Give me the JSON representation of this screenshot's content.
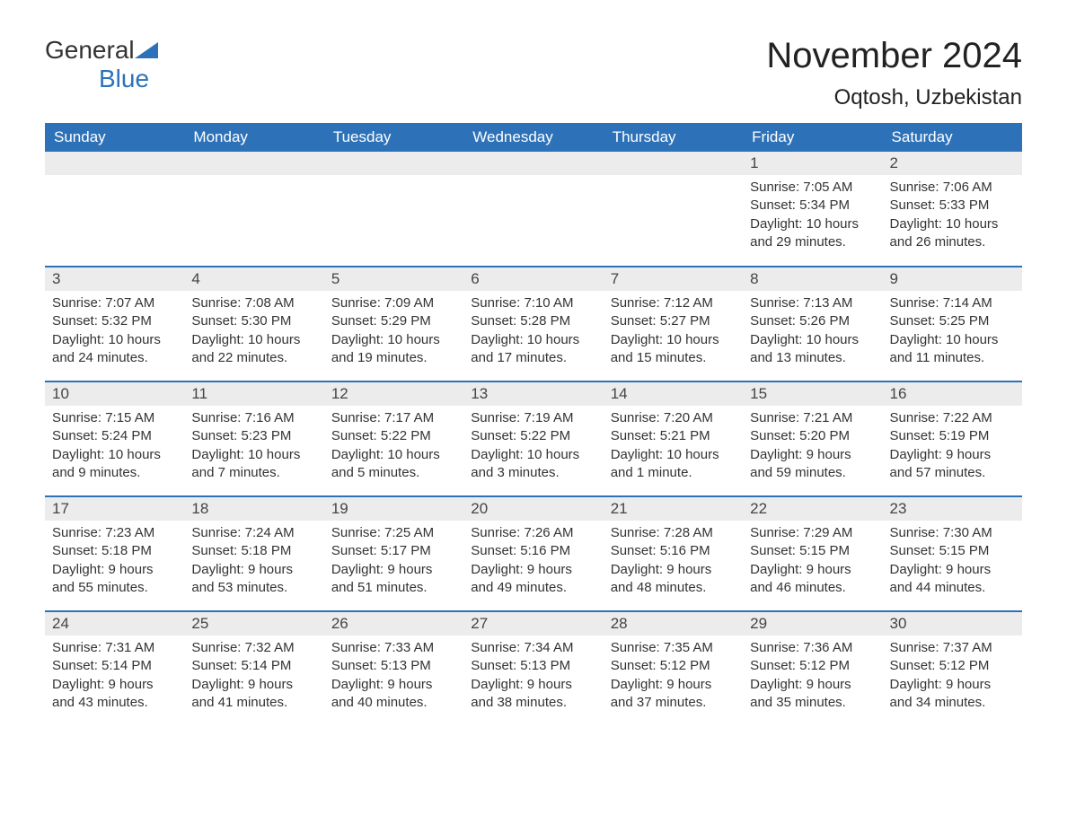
{
  "brand": {
    "part1": "General",
    "part2": "Blue"
  },
  "title": "November 2024",
  "location": "Oqtosh, Uzbekistan",
  "colors": {
    "header_bg": "#2d72b8",
    "header_text": "#ffffff",
    "daynum_bg": "#ececec",
    "row_border": "#2d72b8",
    "body_text": "#333333",
    "page_bg": "#ffffff"
  },
  "typography": {
    "title_fontsize": 40,
    "location_fontsize": 24,
    "header_fontsize": 17,
    "daynum_fontsize": 17,
    "cell_fontsize": 15
  },
  "layout": {
    "columns": 7,
    "rows": 5,
    "first_weekday_index": 5
  },
  "weekdays": [
    "Sunday",
    "Monday",
    "Tuesday",
    "Wednesday",
    "Thursday",
    "Friday",
    "Saturday"
  ],
  "days": [
    {
      "n": 1,
      "sunrise": "7:05 AM",
      "sunset": "5:34 PM",
      "daylight": "10 hours and 29 minutes."
    },
    {
      "n": 2,
      "sunrise": "7:06 AM",
      "sunset": "5:33 PM",
      "daylight": "10 hours and 26 minutes."
    },
    {
      "n": 3,
      "sunrise": "7:07 AM",
      "sunset": "5:32 PM",
      "daylight": "10 hours and 24 minutes."
    },
    {
      "n": 4,
      "sunrise": "7:08 AM",
      "sunset": "5:30 PM",
      "daylight": "10 hours and 22 minutes."
    },
    {
      "n": 5,
      "sunrise": "7:09 AM",
      "sunset": "5:29 PM",
      "daylight": "10 hours and 19 minutes."
    },
    {
      "n": 6,
      "sunrise": "7:10 AM",
      "sunset": "5:28 PM",
      "daylight": "10 hours and 17 minutes."
    },
    {
      "n": 7,
      "sunrise": "7:12 AM",
      "sunset": "5:27 PM",
      "daylight": "10 hours and 15 minutes."
    },
    {
      "n": 8,
      "sunrise": "7:13 AM",
      "sunset": "5:26 PM",
      "daylight": "10 hours and 13 minutes."
    },
    {
      "n": 9,
      "sunrise": "7:14 AM",
      "sunset": "5:25 PM",
      "daylight": "10 hours and 11 minutes."
    },
    {
      "n": 10,
      "sunrise": "7:15 AM",
      "sunset": "5:24 PM",
      "daylight": "10 hours and 9 minutes."
    },
    {
      "n": 11,
      "sunrise": "7:16 AM",
      "sunset": "5:23 PM",
      "daylight": "10 hours and 7 minutes."
    },
    {
      "n": 12,
      "sunrise": "7:17 AM",
      "sunset": "5:22 PM",
      "daylight": "10 hours and 5 minutes."
    },
    {
      "n": 13,
      "sunrise": "7:19 AM",
      "sunset": "5:22 PM",
      "daylight": "10 hours and 3 minutes."
    },
    {
      "n": 14,
      "sunrise": "7:20 AM",
      "sunset": "5:21 PM",
      "daylight": "10 hours and 1 minute."
    },
    {
      "n": 15,
      "sunrise": "7:21 AM",
      "sunset": "5:20 PM",
      "daylight": "9 hours and 59 minutes."
    },
    {
      "n": 16,
      "sunrise": "7:22 AM",
      "sunset": "5:19 PM",
      "daylight": "9 hours and 57 minutes."
    },
    {
      "n": 17,
      "sunrise": "7:23 AM",
      "sunset": "5:18 PM",
      "daylight": "9 hours and 55 minutes."
    },
    {
      "n": 18,
      "sunrise": "7:24 AM",
      "sunset": "5:18 PM",
      "daylight": "9 hours and 53 minutes."
    },
    {
      "n": 19,
      "sunrise": "7:25 AM",
      "sunset": "5:17 PM",
      "daylight": "9 hours and 51 minutes."
    },
    {
      "n": 20,
      "sunrise": "7:26 AM",
      "sunset": "5:16 PM",
      "daylight": "9 hours and 49 minutes."
    },
    {
      "n": 21,
      "sunrise": "7:28 AM",
      "sunset": "5:16 PM",
      "daylight": "9 hours and 48 minutes."
    },
    {
      "n": 22,
      "sunrise": "7:29 AM",
      "sunset": "5:15 PM",
      "daylight": "9 hours and 46 minutes."
    },
    {
      "n": 23,
      "sunrise": "7:30 AM",
      "sunset": "5:15 PM",
      "daylight": "9 hours and 44 minutes."
    },
    {
      "n": 24,
      "sunrise": "7:31 AM",
      "sunset": "5:14 PM",
      "daylight": "9 hours and 43 minutes."
    },
    {
      "n": 25,
      "sunrise": "7:32 AM",
      "sunset": "5:14 PM",
      "daylight": "9 hours and 41 minutes."
    },
    {
      "n": 26,
      "sunrise": "7:33 AM",
      "sunset": "5:13 PM",
      "daylight": "9 hours and 40 minutes."
    },
    {
      "n": 27,
      "sunrise": "7:34 AM",
      "sunset": "5:13 PM",
      "daylight": "9 hours and 38 minutes."
    },
    {
      "n": 28,
      "sunrise": "7:35 AM",
      "sunset": "5:12 PM",
      "daylight": "9 hours and 37 minutes."
    },
    {
      "n": 29,
      "sunrise": "7:36 AM",
      "sunset": "5:12 PM",
      "daylight": "9 hours and 35 minutes."
    },
    {
      "n": 30,
      "sunrise": "7:37 AM",
      "sunset": "5:12 PM",
      "daylight": "9 hours and 34 minutes."
    }
  ],
  "labels": {
    "sunrise": "Sunrise:",
    "sunset": "Sunset:",
    "daylight": "Daylight:"
  }
}
